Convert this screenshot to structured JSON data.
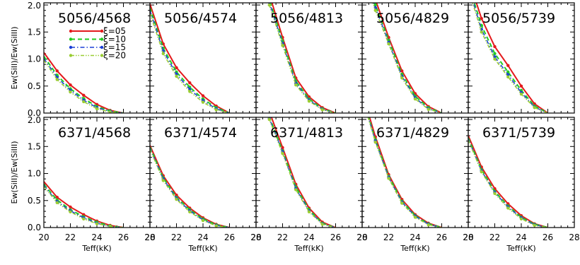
{
  "chart_data": {
    "type": "line",
    "xlabel": "Teff(kK)",
    "ylabel": "Ew(SiII)/Ew(SiIII)",
    "xlim": [
      20,
      28
    ],
    "ylim": [
      0,
      2
    ],
    "xticks": [
      "20",
      "22",
      "24",
      "26",
      "28"
    ],
    "yticks": [
      "0.0",
      "0.5",
      "1.0",
      "1.5",
      "2.0"
    ],
    "x": [
      20,
      21,
      22,
      23,
      24,
      25,
      26
    ],
    "legend": {
      "placement": "top-left",
      "entries": [
        {
          "label": "ξ=05",
          "color": "#e31a1c",
          "dash": "solid",
          "width": 2
        },
        {
          "label": "ξ=10",
          "color": "#22cc22",
          "dash": "6,4",
          "width": 2
        },
        {
          "label": "ξ=15",
          "color": "#1a3fd6",
          "dash": "6,3,1.5,3",
          "width": 1.5
        },
        {
          "label": "ξ=20",
          "color": "#9acd32",
          "dash": "5,2,1.5,2,1.5,2",
          "width": 1.5
        }
      ]
    },
    "panels": [
      {
        "row": 0,
        "col": 0,
        "title": "5056/4568",
        "series": [
          [
            1.12,
            0.78,
            0.52,
            0.33,
            0.16,
            0.05,
            0.0
          ],
          [
            1.05,
            0.7,
            0.45,
            0.27,
            0.12,
            0.04,
            0.0
          ],
          [
            1.01,
            0.66,
            0.42,
            0.24,
            0.1,
            0.03,
            0.0
          ],
          [
            0.98,
            0.62,
            0.39,
            0.21,
            0.08,
            0.02,
            0.0
          ]
        ]
      },
      {
        "row": 0,
        "col": 1,
        "title": "5056/4574",
        "series": [
          [
            2.02,
            1.28,
            0.84,
            0.56,
            0.32,
            0.13,
            0.0
          ],
          [
            1.95,
            1.2,
            0.76,
            0.48,
            0.26,
            0.1,
            0.0
          ],
          [
            1.9,
            1.15,
            0.72,
            0.44,
            0.23,
            0.08,
            0.0
          ],
          [
            1.85,
            1.1,
            0.68,
            0.4,
            0.2,
            0.06,
            0.0
          ]
        ]
      },
      {
        "row": 0,
        "col": 2,
        "title": "5056/4813",
        "series": [
          [
            2.9,
            2.2,
            1.4,
            0.65,
            0.3,
            0.1,
            0.0
          ],
          [
            2.8,
            2.1,
            1.33,
            0.59,
            0.26,
            0.08,
            0.0
          ],
          [
            2.8,
            2.05,
            1.29,
            0.55,
            0.24,
            0.07,
            0.0
          ],
          [
            2.7,
            2.0,
            1.25,
            0.52,
            0.22,
            0.06,
            0.0
          ]
        ]
      },
      {
        "row": 0,
        "col": 3,
        "title": "5056/4829",
        "series": [
          [
            2.8,
            2.1,
            1.4,
            0.78,
            0.36,
            0.12,
            0.0
          ],
          [
            2.7,
            2.0,
            1.35,
            0.72,
            0.31,
            0.1,
            0.0
          ],
          [
            2.65,
            1.95,
            1.31,
            0.68,
            0.28,
            0.08,
            0.0
          ],
          [
            2.6,
            1.9,
            1.28,
            0.65,
            0.26,
            0.07,
            0.0
          ]
        ]
      },
      {
        "row": 0,
        "col": 4,
        "title": "5056/5739",
        "series": [
          [
            2.5,
            1.75,
            1.23,
            0.88,
            0.5,
            0.17,
            0.0
          ],
          [
            2.4,
            1.62,
            1.1,
            0.76,
            0.42,
            0.13,
            0.0
          ],
          [
            2.35,
            1.55,
            1.04,
            0.71,
            0.38,
            0.11,
            0.0
          ],
          [
            2.3,
            1.5,
            1.0,
            0.67,
            0.35,
            0.1,
            0.0
          ]
        ]
      },
      {
        "row": 1,
        "col": 0,
        "title": "6371/4568",
        "series": [
          [
            0.85,
            0.56,
            0.38,
            0.24,
            0.12,
            0.04,
            0.0
          ],
          [
            0.8,
            0.51,
            0.33,
            0.2,
            0.1,
            0.03,
            0.0
          ],
          [
            0.78,
            0.48,
            0.31,
            0.18,
            0.08,
            0.02,
            0.0
          ],
          [
            0.76,
            0.46,
            0.29,
            0.16,
            0.07,
            0.02,
            0.0
          ]
        ]
      },
      {
        "row": 1,
        "col": 1,
        "title": "6371/4574",
        "series": [
          [
            1.52,
            0.96,
            0.6,
            0.36,
            0.18,
            0.06,
            0.0
          ],
          [
            1.49,
            0.92,
            0.56,
            0.33,
            0.16,
            0.05,
            0.0
          ],
          [
            1.47,
            0.9,
            0.54,
            0.31,
            0.14,
            0.04,
            0.0
          ],
          [
            1.45,
            0.87,
            0.52,
            0.29,
            0.13,
            0.03,
            0.0
          ]
        ]
      },
      {
        "row": 1,
        "col": 2,
        "title": "6371/4813",
        "series": [
          [
            2.9,
            2.15,
            1.48,
            0.8,
            0.36,
            0.1,
            0.0
          ],
          [
            2.8,
            2.05,
            1.42,
            0.75,
            0.33,
            0.08,
            0.0
          ],
          [
            2.8,
            2.02,
            1.4,
            0.72,
            0.31,
            0.07,
            0.0
          ],
          [
            2.75,
            2.0,
            1.37,
            0.7,
            0.29,
            0.06,
            0.0
          ]
        ]
      },
      {
        "row": 1,
        "col": 3,
        "title": "6371/4829",
        "series": [
          [
            2.5,
            1.68,
            0.98,
            0.52,
            0.24,
            0.08,
            0.0
          ],
          [
            2.45,
            1.62,
            0.95,
            0.49,
            0.22,
            0.07,
            0.0
          ],
          [
            2.43,
            1.6,
            0.93,
            0.47,
            0.21,
            0.06,
            0.0
          ],
          [
            2.4,
            1.58,
            0.91,
            0.45,
            0.19,
            0.05,
            0.0
          ]
        ]
      },
      {
        "row": 1,
        "col": 4,
        "title": "6371/5739",
        "series": [
          [
            1.7,
            1.12,
            0.72,
            0.44,
            0.22,
            0.07,
            0.0
          ],
          [
            1.66,
            1.07,
            0.67,
            0.4,
            0.19,
            0.06,
            0.0
          ],
          [
            1.64,
            1.05,
            0.65,
            0.38,
            0.18,
            0.05,
            0.0
          ],
          [
            1.62,
            1.03,
            0.63,
            0.36,
            0.16,
            0.04,
            0.0
          ]
        ]
      }
    ]
  }
}
